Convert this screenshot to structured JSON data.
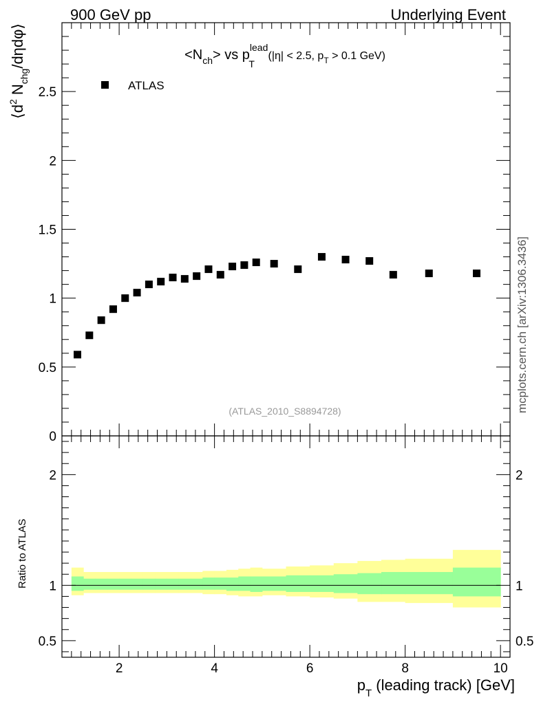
{
  "header": {
    "left_label": "900 GeV pp",
    "right_label": "Underlying Event"
  },
  "side_label": "mcplots.cern.ch [arXiv:1306.3436]",
  "chart_data": [
    {
      "type": "scatter",
      "title": {
        "main": "<N",
        "main_sub": "ch",
        "mid": "> vs p",
        "p_sub": "T",
        "p_sup": "lead",
        "cuts_a": "(|η| < 2.5, p",
        "cuts_sub": "T",
        "cuts_b": " > 0.1 GeV)"
      },
      "ylabel": {
        "open": "⟨d",
        "sup": "2",
        "mid": " N",
        "sub": "chg",
        "close": "/dηdφ⟩"
      },
      "watermark": "(ATLAS_2010_S8894728)",
      "legend": {
        "placement": "top-left",
        "entries": [
          "ATLAS"
        ]
      },
      "xlim": [
        0.8,
        10.2
      ],
      "ylim": [
        0,
        3.0
      ],
      "ytick_labels": [
        "0",
        "0.5",
        "1",
        "1.5",
        "2",
        "2.5"
      ],
      "ytick_values": [
        0,
        0.5,
        1,
        1.5,
        2,
        2.5
      ],
      "series": [
        {
          "name": "ATLAS",
          "x": [
            1.125,
            1.375,
            1.625,
            1.875,
            2.125,
            2.375,
            2.625,
            2.875,
            3.125,
            3.375,
            3.625,
            3.875,
            4.125,
            4.375,
            4.625,
            4.875,
            5.25,
            5.75,
            6.25,
            6.75,
            7.25,
            7.75,
            8.5,
            9.5
          ],
          "values": [
            0.59,
            0.73,
            0.84,
            0.92,
            1.0,
            1.04,
            1.1,
            1.12,
            1.15,
            1.14,
            1.16,
            1.21,
            1.17,
            1.23,
            1.24,
            1.26,
            1.25,
            1.21,
            1.3,
            1.28,
            1.27,
            1.17,
            1.18,
            1.18
          ]
        }
      ]
    },
    {
      "type": "area",
      "ylabel": "Ratio to ATLAS",
      "xlabel": {
        "p": "p",
        "sub": "T",
        "rest": " (leading track) [GeV]"
      },
      "xlim": [
        0.8,
        10.2
      ],
      "ylim": [
        0.35,
        2.35
      ],
      "ytick_labels": [
        "0.5",
        "1",
        "2"
      ],
      "ytick_values": [
        0.5,
        1,
        2
      ],
      "xtick_labels": [
        "2",
        "4",
        "6",
        "8",
        "10"
      ],
      "xtick_values": [
        2,
        4,
        6,
        8,
        10
      ],
      "reference_line": 1.0,
      "bin_edges": [
        1.0,
        1.25,
        1.5,
        1.75,
        2.0,
        2.25,
        2.5,
        2.75,
        3.0,
        3.25,
        3.5,
        3.75,
        4.0,
        4.25,
        4.5,
        4.75,
        5.0,
        5.5,
        6.0,
        6.5,
        7.0,
        7.5,
        8.0,
        9.0,
        10.0
      ],
      "band_colors": {
        "outer": "#ffff99",
        "inner": "#99ff99"
      },
      "outer_band": {
        "low": [
          0.91,
          0.93,
          0.93,
          0.93,
          0.93,
          0.93,
          0.93,
          0.93,
          0.93,
          0.93,
          0.93,
          0.92,
          0.92,
          0.91,
          0.9,
          0.9,
          0.91,
          0.9,
          0.89,
          0.88,
          0.85,
          0.85,
          0.84,
          0.8
        ],
        "high": [
          1.16,
          1.12,
          1.12,
          1.12,
          1.12,
          1.12,
          1.12,
          1.12,
          1.12,
          1.12,
          1.12,
          1.13,
          1.13,
          1.14,
          1.15,
          1.16,
          1.15,
          1.17,
          1.18,
          1.2,
          1.22,
          1.23,
          1.24,
          1.32
        ]
      },
      "inner_band": {
        "low": [
          0.95,
          0.96,
          0.96,
          0.96,
          0.96,
          0.96,
          0.96,
          0.96,
          0.96,
          0.96,
          0.96,
          0.96,
          0.96,
          0.95,
          0.95,
          0.94,
          0.95,
          0.94,
          0.94,
          0.93,
          0.92,
          0.92,
          0.92,
          0.9
        ],
        "high": [
          1.08,
          1.06,
          1.06,
          1.06,
          1.06,
          1.06,
          1.06,
          1.06,
          1.06,
          1.06,
          1.06,
          1.07,
          1.07,
          1.07,
          1.08,
          1.08,
          1.08,
          1.09,
          1.09,
          1.1,
          1.11,
          1.12,
          1.12,
          1.16
        ]
      }
    }
  ]
}
